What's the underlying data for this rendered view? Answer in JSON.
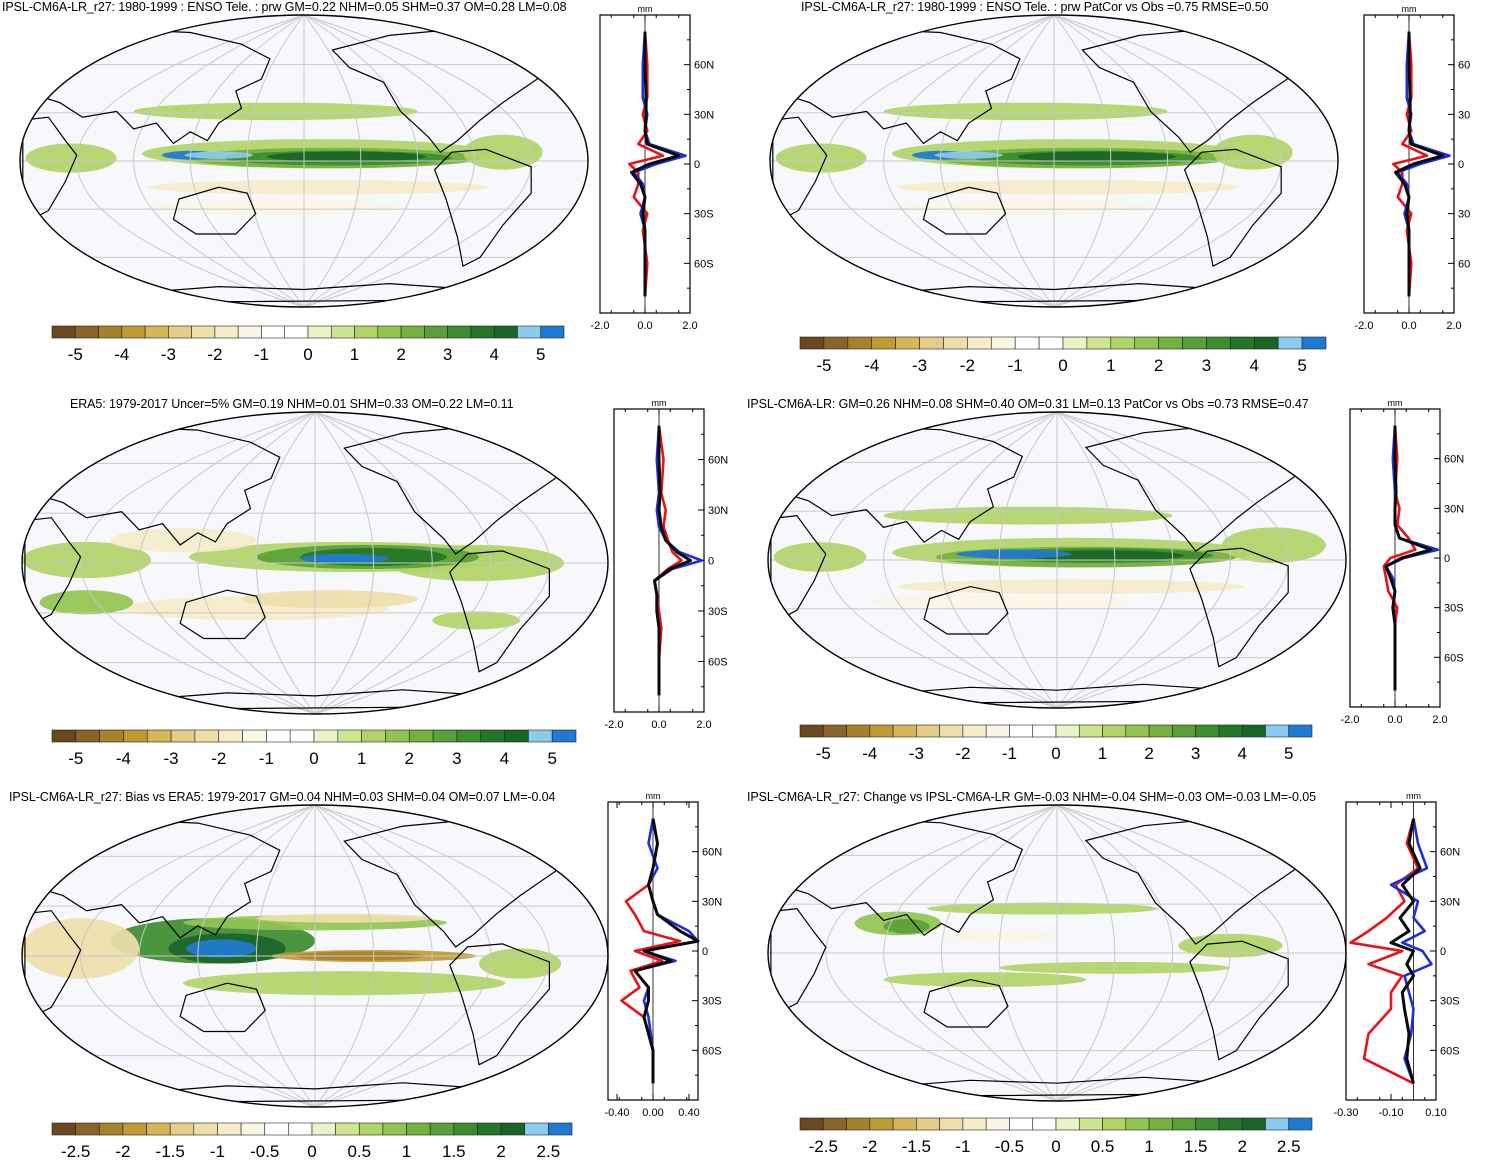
{
  "colors": {
    "ocean": "#f7f8fc",
    "grid": "#c8c8c8",
    "coast": "#000000",
    "line_obs": "#0a0a0a",
    "line_red": "#e8121a",
    "line_blue": "#1c2fd8"
  },
  "colorbar_colors": [
    "#6a4820",
    "#8a6428",
    "#a8822a",
    "#c09a34",
    "#d6b658",
    "#e4cd88",
    "#eedfaa",
    "#f5ecca",
    "#faf6e6",
    "#ffffff",
    "#ffffff",
    "#e9f3c8",
    "#cde58e",
    "#b0d468",
    "#92c450",
    "#76b140",
    "#5aa038",
    "#3c8c30",
    "#247628",
    "#1a6428",
    "#8ccaf0",
    "#1e7ad2"
  ],
  "panels": [
    {
      "id": "p1",
      "title": "IPSL-CM6A-LR_r27: 1980-1999 : ENSO Tele. : prw GM=0.22 NHM=0.05 SHM=0.37 OM=0.28 LM=0.08",
      "colorbar_labels": [
        "-5",
        "-4",
        "-3",
        "-2",
        "-1",
        "0",
        "1",
        "2",
        "3",
        "4",
        "5"
      ],
      "zonal": {
        "unit": "mm",
        "x_ticks": [
          "-2.0",
          "0.0",
          "2.0"
        ],
        "lat_labels": [
          "60N",
          "30N",
          "0",
          "30S",
          "60S"
        ]
      }
    },
    {
      "id": "p2",
      "title": "IPSL-CM6A-LR_r27: 1980-1999 : ENSO Tele. : prw PatCor vs Obs =0.75 RMSE=0.50",
      "colorbar_labels": [
        "-5",
        "-4",
        "-3",
        "-2",
        "-1",
        "0",
        "1",
        "2",
        "3",
        "4",
        "5"
      ],
      "zonal": {
        "unit": "mm",
        "x_ticks": [
          "-2.0",
          "0.0",
          "2.0"
        ],
        "lat_labels": [
          "60",
          "30",
          "0",
          "30",
          "60"
        ]
      }
    },
    {
      "id": "p3",
      "title": "ERA5: 1979-2017 Uncer=5% GM=0.19 NHM=0.01 SHM=0.33 OM=0.22 LM=0.11",
      "colorbar_labels": [
        "-5",
        "-4",
        "-3",
        "-2",
        "-1",
        "0",
        "1",
        "2",
        "3",
        "4",
        "5"
      ],
      "zonal": {
        "unit": "mm",
        "x_ticks": [
          "-2.0",
          "0.0",
          "2.0"
        ],
        "lat_labels": [
          "60N",
          "30N",
          "0",
          "30S",
          "60S"
        ]
      }
    },
    {
      "id": "p4",
      "title": "IPSL-CM6A-LR: GM=0.26 NHM=0.08 SHM=0.40 OM=0.31 LM=0.13 PatCor vs Obs =0.73 RMSE=0.47",
      "colorbar_labels": [
        "-5",
        "-4",
        "-3",
        "-2",
        "-1",
        "0",
        "1",
        "2",
        "3",
        "4",
        "5"
      ],
      "zonal": {
        "unit": "mm",
        "x_ticks": [
          "-2.0",
          "0.0",
          "2.0"
        ],
        "lat_labels": [
          "60N",
          "30N",
          "0",
          "30S",
          "60S"
        ]
      }
    },
    {
      "id": "p5",
      "title": "IPSL-CM6A-LR_r27: Bias vs ERA5: 1979-2017 GM=0.04 NHM=0.03 SHM=0.04 OM=0.07 LM=-0.04",
      "colorbar_labels": [
        "-2.5",
        "-2",
        "-1.5",
        "-1",
        "-0.5",
        "0",
        "0.5",
        "1",
        "1.5",
        "2",
        "2.5"
      ],
      "zonal": {
        "unit": "mm",
        "x_ticks": [
          "-0.40",
          "0.00",
          "0.40"
        ],
        "lat_labels": [
          "60N",
          "30N",
          "0",
          "30S",
          "60S"
        ]
      }
    },
    {
      "id": "p6",
      "title": "IPSL-CM6A-LR_r27: Change vs IPSL-CM6A-LR GM=-0.03 NHM=-0.04 SHM=-0.03 OM=-0.03 LM=-0.05",
      "colorbar_labels": [
        "-2.5",
        "-2",
        "-1.5",
        "-1",
        "-0.5",
        "0",
        "0.5",
        "1",
        "1.5",
        "2",
        "2.5"
      ],
      "zonal": {
        "unit": "mm",
        "x_ticks": [
          "-0.30",
          "-0.10",
          "0.10"
        ],
        "lat_labels": [
          "60N",
          "30N",
          "0",
          "30S",
          "60S"
        ]
      }
    }
  ],
  "chart_data": [
    {
      "type": "heatmap",
      "panel": "p1",
      "title": "IPSL-CM6A-LR_r27: 1980-1999 : ENSO Tele. : prw GM=0.22 NHM=0.05 SHM=0.37 OM=0.28 LM=0.08",
      "colorbar_range": [
        -5,
        5
      ],
      "zonal_mean": {
        "type": "line",
        "xlim": [
          -2,
          2
        ],
        "ylim": [
          -90,
          90
        ],
        "lat": [
          80,
          60,
          40,
          30,
          20,
          12,
          5,
          0,
          -5,
          -12,
          -20,
          -30,
          -40,
          -60,
          -80
        ],
        "series": [
          {
            "color": "black",
            "values": [
              0,
              0,
              0.05,
              0.05,
              0,
              0.1,
              1.5,
              0.2,
              -0.6,
              -0.2,
              0,
              -0.1,
              0,
              0,
              0
            ]
          },
          {
            "color": "red",
            "values": [
              0,
              0.1,
              0.1,
              -0.1,
              0.1,
              -0.3,
              0.8,
              -0.7,
              -0.3,
              -0.3,
              -0.5,
              0.1,
              -0.1,
              0.1,
              0
            ]
          },
          {
            "color": "blue",
            "values": [
              0,
              -0.1,
              -0.1,
              0.1,
              0,
              0.2,
              1.8,
              0.5,
              -0.5,
              -0.1,
              0,
              -0.2,
              0,
              0,
              0
            ]
          }
        ]
      }
    },
    {
      "type": "heatmap",
      "panel": "p2",
      "title": "IPSL-CM6A-LR_r27: 1980-1999 : ENSO Tele. : prw PatCor vs Obs =0.75 RMSE=0.50",
      "colorbar_range": [
        -5,
        5
      ],
      "zonal_mean": {
        "type": "line",
        "xlim": [
          -2,
          2
        ],
        "ylim": [
          -90,
          90
        ],
        "lat": [
          80,
          60,
          40,
          30,
          20,
          12,
          5,
          0,
          -5,
          -12,
          -20,
          -30,
          -40,
          -60,
          -80
        ],
        "series": [
          {
            "color": "black",
            "values": [
              0,
              0,
              0.05,
              0.05,
              0,
              0.1,
              1.5,
              0.2,
              -0.6,
              -0.2,
              0,
              -0.1,
              0,
              0,
              0
            ]
          },
          {
            "color": "red",
            "values": [
              0,
              0.1,
              0.1,
              -0.1,
              0.1,
              -0.3,
              0.8,
              -0.7,
              -0.3,
              -0.3,
              -0.5,
              0.1,
              -0.1,
              0.1,
              0
            ]
          },
          {
            "color": "blue",
            "values": [
              0,
              -0.1,
              -0.1,
              0.1,
              0,
              0.2,
              1.8,
              0.5,
              -0.5,
              -0.1,
              0,
              -0.2,
              0,
              0,
              0
            ]
          }
        ]
      }
    },
    {
      "type": "heatmap",
      "panel": "p3",
      "title": "ERA5: 1979-2017 Uncer=5% GM=0.19 NHM=0.01 SHM=0.33 OM=0.22 LM=0.11",
      "colorbar_range": [
        -5,
        5
      ],
      "zonal_mean": {
        "type": "line",
        "xlim": [
          -2,
          2
        ],
        "ylim": [
          -90,
          90
        ],
        "lat": [
          80,
          60,
          40,
          30,
          20,
          12,
          5,
          0,
          -5,
          -12,
          -20,
          -30,
          -40,
          -60,
          -80
        ],
        "series": [
          {
            "color": "black",
            "values": [
              0,
              0,
              0.05,
              0,
              0.1,
              0.3,
              0.8,
              1.4,
              0.5,
              -0.2,
              -0.1,
              -0.1,
              0,
              0,
              0
            ]
          },
          {
            "color": "red",
            "values": [
              0,
              0.2,
              0.1,
              0.3,
              0.2,
              0.4,
              0.6,
              1.0,
              0.4,
              -0.2,
              -0.1,
              0,
              0.1,
              0,
              0
            ]
          },
          {
            "color": "blue",
            "values": [
              0,
              -0.1,
              0,
              -0.1,
              0,
              0.3,
              0.9,
              1.9,
              0.6,
              -0.2,
              -0.1,
              -0.1,
              0,
              0,
              0
            ]
          }
        ]
      }
    },
    {
      "type": "heatmap",
      "panel": "p4",
      "title": "IPSL-CM6A-LR: GM=0.26 NHM=0.08 SHM=0.40 OM=0.31 LM=0.13 PatCor vs Obs =0.73 RMSE=0.47",
      "colorbar_range": [
        -5,
        5
      ],
      "zonal_mean": {
        "type": "line",
        "xlim": [
          -2,
          2
        ],
        "ylim": [
          -90,
          90
        ],
        "lat": [
          80,
          60,
          40,
          30,
          20,
          12,
          5,
          0,
          -5,
          -12,
          -20,
          -30,
          -40,
          -60,
          -80
        ],
        "series": [
          {
            "color": "black",
            "values": [
              0,
              0,
              0.05,
              0,
              0,
              0.2,
              1.6,
              0.3,
              -0.4,
              -0.2,
              0,
              -0.1,
              0,
              0,
              0
            ]
          },
          {
            "color": "red",
            "values": [
              0,
              0.1,
              0,
              0.2,
              0.1,
              0.6,
              0.9,
              -0.2,
              -0.5,
              -0.4,
              -0.3,
              0.1,
              0,
              0,
              0
            ]
          },
          {
            "color": "blue",
            "values": [
              0,
              -0.1,
              0,
              0,
              0,
              0.2,
              1.9,
              0.4,
              -0.4,
              -0.1,
              0,
              -0.1,
              0,
              0,
              0
            ]
          }
        ]
      }
    },
    {
      "type": "heatmap",
      "panel": "p5",
      "title": "IPSL-CM6A-LR_r27: Bias vs ERA5: 1979-2017 GM=0.04 NHM=0.03 SHM=0.04 OM=0.07 LM=-0.04",
      "colorbar_range": [
        -2.5,
        2.5
      ],
      "zonal_mean": {
        "type": "line",
        "xlim": [
          -0.5,
          0.5
        ],
        "ylim": [
          -90,
          90
        ],
        "lat": [
          80,
          65,
          50,
          40,
          30,
          22,
          12,
          6,
          0,
          -6,
          -12,
          -22,
          -30,
          -40,
          -60,
          -80
        ],
        "series": [
          {
            "color": "black",
            "values": [
              0,
              0.05,
              0,
              -0.05,
              0,
              0.05,
              0.3,
              0.5,
              -0.1,
              0.2,
              -0.2,
              -0.05,
              -0.05,
              -0.1,
              0,
              0
            ]
          },
          {
            "color": "red",
            "values": [
              0,
              0.05,
              0,
              -0.05,
              -0.3,
              -0.2,
              -0.1,
              0.3,
              -0.2,
              0.1,
              -0.25,
              -0.15,
              -0.35,
              -0.1,
              0,
              0
            ]
          },
          {
            "color": "blue",
            "values": [
              0,
              -0.05,
              0.05,
              -0.05,
              0,
              0.05,
              0.4,
              0.55,
              -0.1,
              0.25,
              -0.2,
              -0.05,
              -0.1,
              -0.05,
              0,
              0
            ]
          }
        ]
      }
    },
    {
      "type": "heatmap",
      "panel": "p6",
      "title": "IPSL-CM6A-LR_r27: Change vs IPSL-CM6A-LR GM=-0.03 NHM=-0.04 SHM=-0.03 OM=-0.03 LM=-0.05",
      "colorbar_range": [
        -2.5,
        2.5
      ],
      "zonal_mean": {
        "type": "line",
        "xlim": [
          -0.3,
          0.1
        ],
        "ylim": [
          -90,
          90
        ],
        "lat": [
          80,
          65,
          50,
          40,
          30,
          20,
          12,
          5,
          0,
          -8,
          -15,
          -25,
          -35,
          -50,
          -65,
          -80
        ],
        "series": [
          {
            "color": "black",
            "values": [
              0,
              -0.02,
              0.03,
              -0.05,
              0,
              -0.06,
              -0.02,
              -0.1,
              0,
              -0.03,
              0,
              -0.05,
              -0.04,
              -0.02,
              -0.03,
              0
            ]
          },
          {
            "color": "red",
            "values": [
              0,
              -0.03,
              0.02,
              -0.08,
              -0.04,
              -0.12,
              -0.2,
              -0.28,
              -0.05,
              -0.2,
              -0.05,
              -0.1,
              -0.1,
              -0.2,
              -0.22,
              0
            ]
          },
          {
            "color": "blue",
            "values": [
              0,
              0.02,
              0.06,
              -0.1,
              0.02,
              0,
              0.05,
              -0.05,
              0.04,
              0.08,
              -0.04,
              -0.02,
              0,
              -0.01,
              -0.04,
              0
            ]
          }
        ]
      }
    }
  ]
}
